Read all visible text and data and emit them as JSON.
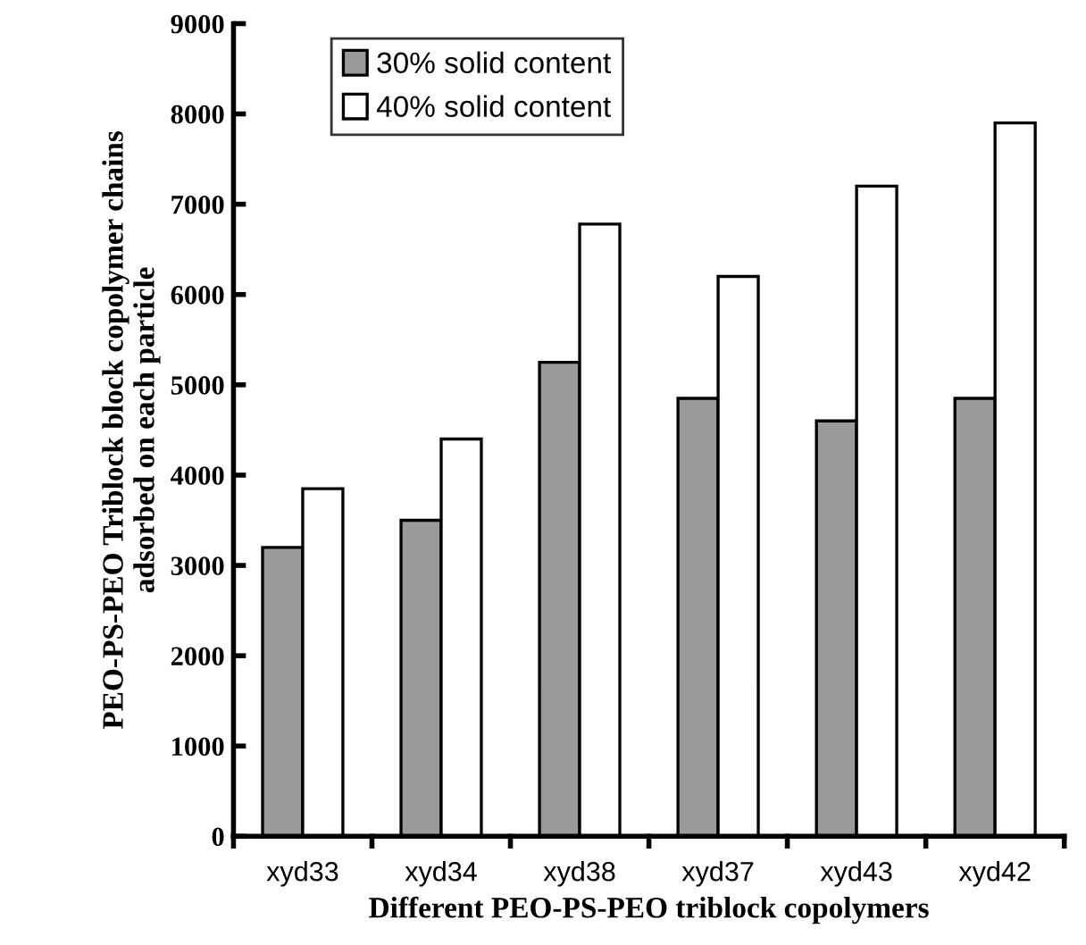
{
  "chart_data": {
    "type": "bar",
    "xlabel": "Different PEO-PS-PEO triblock copolymers",
    "ylabel": "PEO-PS-PEO Triblock block copolymer chains\nadsorbed on each particle",
    "categories": [
      "xyd33",
      "xyd34",
      "xyd38",
      "xyd37",
      "xyd43",
      "xyd42"
    ],
    "series": [
      {
        "name": "30% solid content",
        "color": "#9a9a9a",
        "values": [
          3200,
          3500,
          5250,
          4850,
          4600,
          4850
        ]
      },
      {
        "name": "40% solid content",
        "color": "#ffffff",
        "values": [
          3850,
          4400,
          6780,
          6200,
          7200,
          7900
        ]
      }
    ],
    "ylim": [
      0,
      9000
    ],
    "yticks": [
      0,
      1000,
      2000,
      3000,
      4000,
      5000,
      6000,
      7000,
      8000,
      9000
    ],
    "grid": false,
    "legend": "top left"
  }
}
